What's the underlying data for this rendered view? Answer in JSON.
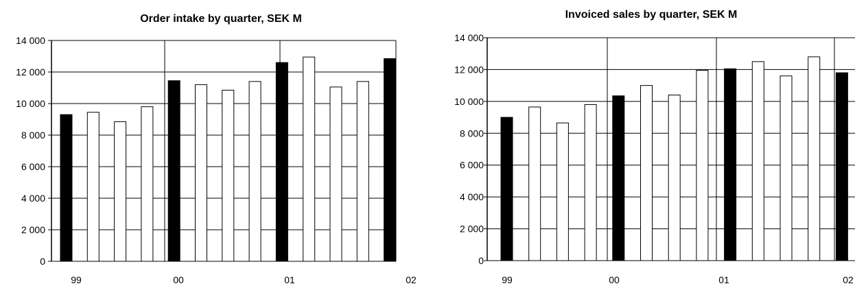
{
  "chart_data": [
    {
      "type": "bar",
      "title": "Order intake by quarter, SEK M",
      "xlabel": "",
      "ylabel": "",
      "ylim": [
        0,
        14000
      ],
      "yticks": [
        "0",
        "2 000",
        "4 000",
        "6 000",
        "8 000",
        "10 000",
        "12 000",
        "14 000"
      ],
      "year_labels": [
        "99",
        "00",
        "01",
        "02"
      ],
      "grid": true,
      "categories": [
        "Q1 99",
        "Q2 99",
        "Q3 99",
        "Q4 99",
        "Q1 00",
        "Q2 00",
        "Q3 00",
        "Q4 00",
        "Q1 01",
        "Q2 01",
        "Q3 01",
        "Q4 01",
        "Q1 02"
      ],
      "values": [
        9300,
        9450,
        8850,
        9800,
        11450,
        11200,
        10850,
        11400,
        12600,
        12950,
        11050,
        11400,
        12850
      ],
      "first_quarter_color": "#000000",
      "other_quarter_color": "#ffffff"
    },
    {
      "type": "bar",
      "title": "Invoiced sales by quarter, SEK M",
      "xlabel": "",
      "ylabel": "",
      "ylim": [
        0,
        14000
      ],
      "yticks": [
        "0",
        "2 000",
        "4 000",
        "6 000",
        "8 000",
        "10 000",
        "12 000",
        "14 000"
      ],
      "year_labels": [
        "99",
        "00",
        "01",
        "02"
      ],
      "grid": true,
      "categories": [
        "Q1 99",
        "Q2 99",
        "Q3 99",
        "Q4 99",
        "Q1 00",
        "Q2 00",
        "Q3 00",
        "Q4 00",
        "Q1 01",
        "Q2 01",
        "Q3 01",
        "Q4 01",
        "Q1 02"
      ],
      "values": [
        9000,
        9650,
        8650,
        9800,
        10350,
        11000,
        10400,
        11950,
        12050,
        12500,
        11600,
        12800,
        11800
      ],
      "first_quarter_color": "#000000",
      "other_quarter_color": "#ffffff"
    }
  ]
}
